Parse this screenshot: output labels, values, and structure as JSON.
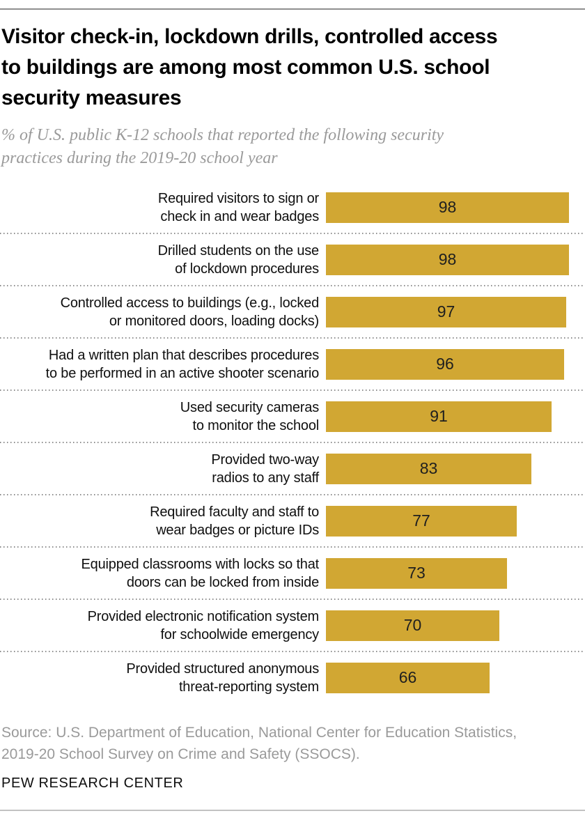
{
  "header": {
    "title": "Visitor check-in, lockdown drills, controlled access\nto buildings are among most common U.S. school\nsecurity measures",
    "subtitle": "% of U.S. public K-12 schools that reported the following security\npractices during the 2019-20 school year"
  },
  "chart_data": {
    "type": "bar",
    "orientation": "horizontal",
    "title": "Visitor check-in, lockdown drills, controlled access to buildings are among most common U.S. school security measures",
    "subtitle": "% of U.S. public K-12 schools that reported the following security practices during the 2019-20 school year",
    "categories": [
      "Required visitors to sign or\ncheck in and wear badges",
      "Drilled students on the use\nof lockdown procedures",
      "Controlled access to buildings (e.g., locked\nor monitored doors, loading docks)",
      "Had a written plan that describes procedures\nto be performed in an active shooter scenario",
      "Used security cameras\nto monitor the school",
      "Provided two-way\nradios to any staff",
      "Required faculty and staff to\nwear badges or picture IDs",
      "Equipped classrooms with locks so that\ndoors can be locked from inside",
      "Provided electronic notification system\nfor schoolwide emergency",
      "Provided structured anonymous\nthreat-reporting system"
    ],
    "values": [
      98,
      98,
      97,
      96,
      91,
      83,
      77,
      73,
      70,
      66
    ],
    "xlim": [
      0,
      100
    ],
    "xlabel": "",
    "ylabel": "",
    "grid": "dotted-row-separators",
    "legend": "none",
    "bar_color": "#d1a733",
    "value_label_color": "#1f1f1f"
  },
  "footer": {
    "source": "Source: U.S. Department of Education, National Center for Education Statistics,\n2019-20 School Survey on Crime and Safety (SSOCS).",
    "brand": "PEW RESEARCH CENTER"
  }
}
